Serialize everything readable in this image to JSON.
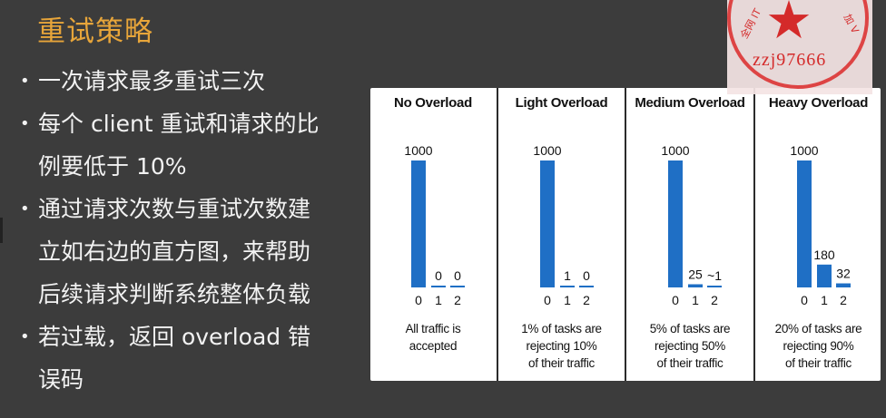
{
  "slide": {
    "title": "重试策略",
    "bullets": [
      {
        "lines": [
          "一次请求最多重试三次"
        ]
      },
      {
        "lines": [
          "每个 client 重试和请求的比",
          "例要低于 10%"
        ]
      },
      {
        "lines": [
          "通过请求次数与重试次数建",
          "立如右边的直方图，来帮助",
          "后续请求判断系统整体负载"
        ]
      },
      {
        "lines": [
          "若过载，返回 overload 错",
          "误码"
        ]
      }
    ]
  },
  "stamp": {
    "code": "zzj97666",
    "arc_left": "全网 IT",
    "arc_right": "加 V"
  },
  "colors": {
    "bar": "#1f6fc5",
    "title": "#e7a53a",
    "background": "#3c3c3c",
    "stamp": "#d42a2a"
  },
  "chart_data": [
    {
      "type": "bar",
      "title": "No Overload",
      "categories": [
        "0",
        "1",
        "2"
      ],
      "values": [
        1000,
        0,
        0
      ],
      "labels": [
        "1000",
        "0",
        "0"
      ],
      "caption": [
        "All traffic is",
        "accepted"
      ],
      "ylim": [
        0,
        1000
      ],
      "grid": false
    },
    {
      "type": "bar",
      "title": "Light Overload",
      "categories": [
        "0",
        "1",
        "2"
      ],
      "values": [
        1000,
        1,
        0
      ],
      "labels": [
        "1000",
        "1",
        "0"
      ],
      "caption": [
        "1% of tasks are",
        "rejecting 10%",
        "of their traffic"
      ],
      "ylim": [
        0,
        1000
      ],
      "grid": false
    },
    {
      "type": "bar",
      "title": "Medium Overload",
      "categories": [
        "0",
        "1",
        "2"
      ],
      "values": [
        1000,
        25,
        1
      ],
      "labels": [
        "1000",
        "25",
        "~1"
      ],
      "caption": [
        "5% of tasks are",
        "rejecting 50%",
        "of their traffic"
      ],
      "ylim": [
        0,
        1000
      ],
      "grid": false
    },
    {
      "type": "bar",
      "title": "Heavy Overload",
      "categories": [
        "0",
        "1",
        "2"
      ],
      "values": [
        1000,
        180,
        32
      ],
      "labels": [
        "1000",
        "180",
        "32"
      ],
      "caption": [
        "20% of tasks are",
        "rejecting 90%",
        "of their traffic"
      ],
      "ylim": [
        0,
        1000
      ],
      "grid": false
    }
  ]
}
